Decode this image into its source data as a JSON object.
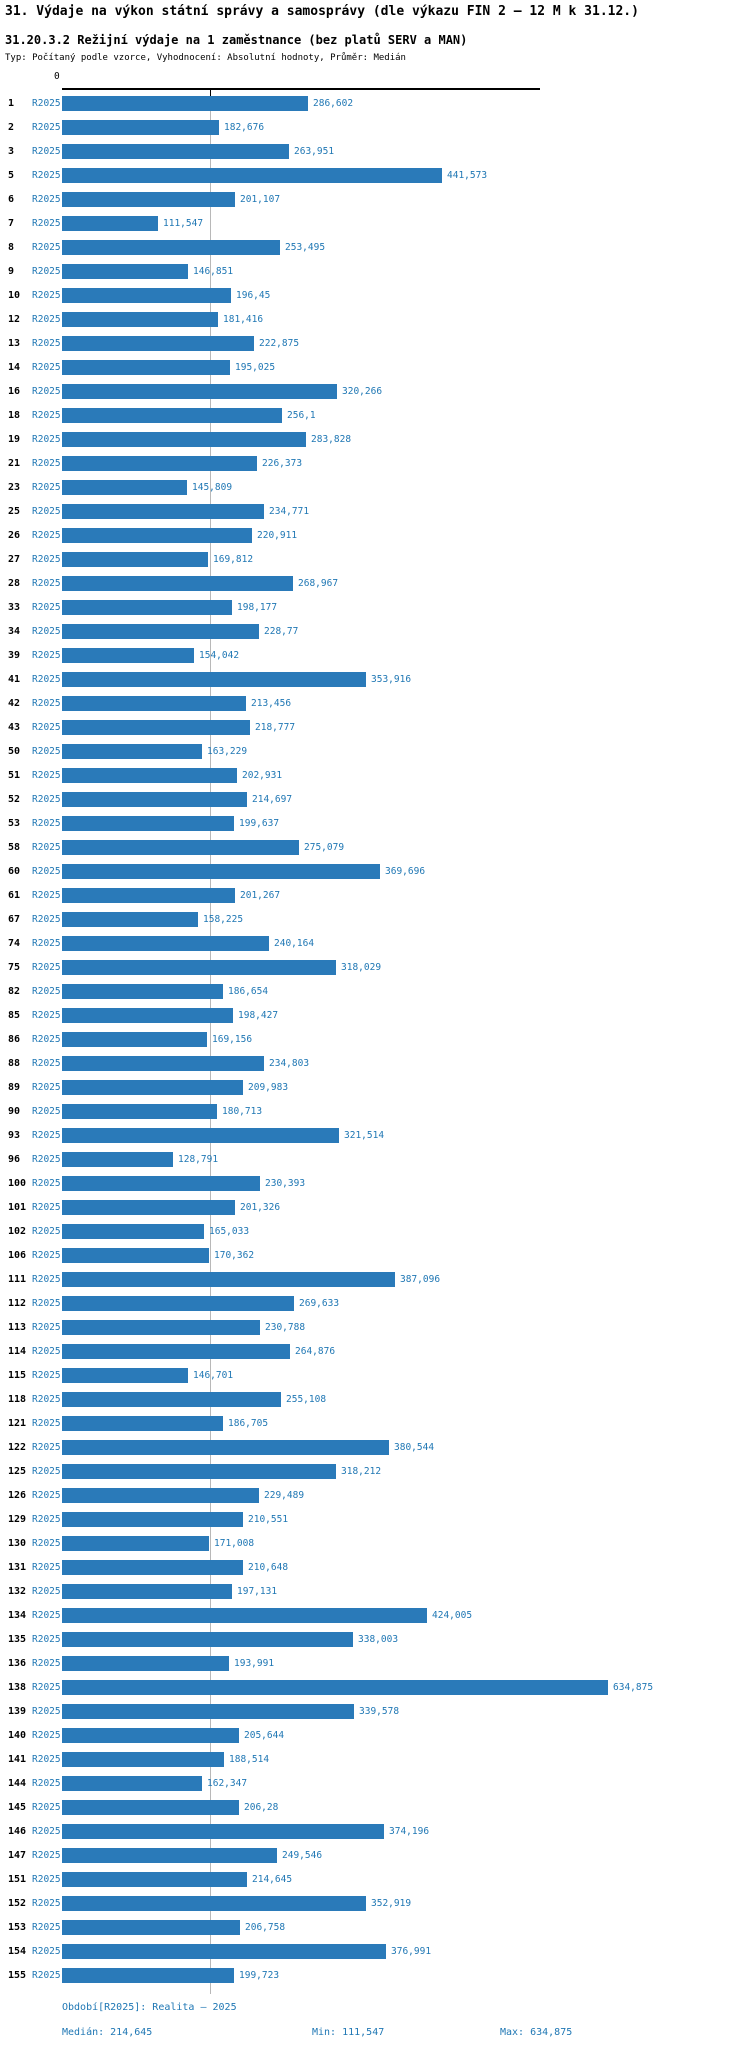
{
  "header": {
    "title": "31. Výdaje na výkon státní správy a samosprávy (dle výkazu FIN 2 – 12 M k 31.12.)",
    "subtitle": "31.20.3.2 Režijní výdaje na 1 zaměstnance (bez platů SERV a MAN)",
    "meta": "Typ: Počítaný podle vzorce, Vyhodnocení: Absolutní hodnoty, Průměr: Medián"
  },
  "axis": {
    "zero_label": "0"
  },
  "chart_data": {
    "type": "bar",
    "orientation": "horizontal",
    "title": "31.20.3.2 Režijní výdaje na 1 zaměstnance (bez platů SERV a MAN)",
    "xlabel": "",
    "ylabel": "",
    "xlim": [
      0,
      634.875
    ],
    "grid": true,
    "series_label": "R2025",
    "accent_color": "#1f77b4",
    "bar_color": "#2a7ab9",
    "categories": [
      "1",
      "2",
      "3",
      "5",
      "6",
      "7",
      "8",
      "9",
      "10",
      "12",
      "13",
      "14",
      "16",
      "18",
      "19",
      "21",
      "23",
      "25",
      "26",
      "27",
      "28",
      "33",
      "34",
      "39",
      "41",
      "42",
      "43",
      "50",
      "51",
      "52",
      "53",
      "58",
      "60",
      "61",
      "67",
      "74",
      "75",
      "82",
      "85",
      "86",
      "88",
      "89",
      "90",
      "93",
      "96",
      "100",
      "101",
      "102",
      "106",
      "111",
      "112",
      "113",
      "114",
      "115",
      "118",
      "121",
      "122",
      "125",
      "126",
      "129",
      "130",
      "131",
      "132",
      "134",
      "135",
      "136",
      "138",
      "139",
      "140",
      "141",
      "144",
      "145",
      "146",
      "147",
      "151",
      "152",
      "153",
      "154",
      "155"
    ],
    "values": [
      286.602,
      182.676,
      263.951,
      441.573,
      201.107,
      111.547,
      253.495,
      146.851,
      196.45,
      181.416,
      222.875,
      195.025,
      320.266,
      256.1,
      283.828,
      226.373,
      145.809,
      234.771,
      220.911,
      169.812,
      268.967,
      198.177,
      228.77,
      154.042,
      353.916,
      213.456,
      218.777,
      163.229,
      202.931,
      214.697,
      199.637,
      275.079,
      369.696,
      201.267,
      158.225,
      240.164,
      318.029,
      186.654,
      198.427,
      169.156,
      234.803,
      209.983,
      180.713,
      321.514,
      128.791,
      230.393,
      201.326,
      165.033,
      170.362,
      387.096,
      269.633,
      230.788,
      264.876,
      146.701,
      255.108,
      186.705,
      380.544,
      318.212,
      229.489,
      210.551,
      171.008,
      210.648,
      197.131,
      424.005,
      338.003,
      193.991,
      634.875,
      339.578,
      205.644,
      188.514,
      162.347,
      206.28,
      374.196,
      249.546,
      214.645,
      352.919,
      206.758,
      376.991,
      199.723
    ],
    "value_labels": [
      "286,602",
      "182,676",
      "263,951",
      "441,573",
      "201,107",
      "111,547",
      "253,495",
      "146,851",
      "196,45",
      "181,416",
      "222,875",
      "195,025",
      "320,266",
      "256,1",
      "283,828",
      "226,373",
      "145,809",
      "234,771",
      "220,911",
      "169,812",
      "268,967",
      "198,177",
      "228,77",
      "154,042",
      "353,916",
      "213,456",
      "218,777",
      "163,229",
      "202,931",
      "214,697",
      "199,637",
      "275,079",
      "369,696",
      "201,267",
      "158,225",
      "240,164",
      "318,029",
      "186,654",
      "198,427",
      "169,156",
      "234,803",
      "209,983",
      "180,713",
      "321,514",
      "128,791",
      "230,393",
      "201,326",
      "165,033",
      "170,362",
      "387,096",
      "269,633",
      "230,788",
      "264,876",
      "146,701",
      "255,108",
      "186,705",
      "380,544",
      "318,212",
      "229,489",
      "210,551",
      "171,008",
      "210,648",
      "197,131",
      "424,005",
      "338,003",
      "193,991",
      "634,875",
      "339,578",
      "205,644",
      "188,514",
      "162,347",
      "206,28",
      "374,196",
      "249,546",
      "214,645",
      "352,919",
      "206,758",
      "376,991",
      "199,723"
    ],
    "median": 214.645,
    "min": 111.547,
    "max": 634.875
  },
  "footer": {
    "period": "Období[R2025]: Realita – 2025",
    "median": "Medián: 214,645",
    "min": "Min: 111,547",
    "max": "Max: 634,875"
  }
}
